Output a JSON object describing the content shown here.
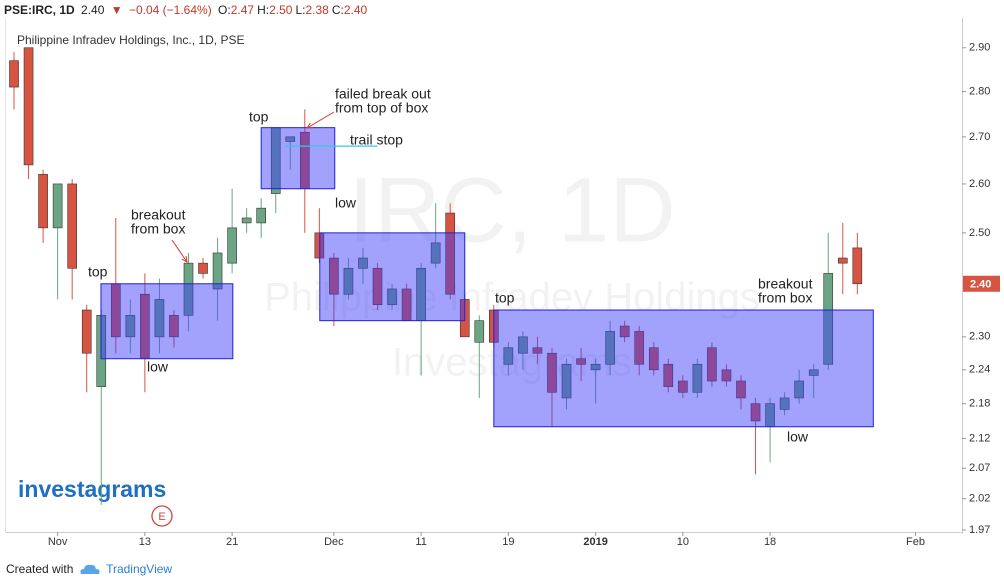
{
  "header": {
    "symbol": "PSE:IRC, 1D",
    "last": "2.40",
    "change": "−0.04 (−1.64%)",
    "ohlc": [
      {
        "label": "O:",
        "value": "2.47"
      },
      {
        "label": "H:",
        "value": "2.50"
      },
      {
        "label": "L:",
        "value": "2.38"
      },
      {
        "label": "C:",
        "value": "2.40"
      }
    ]
  },
  "chart_data": {
    "type": "candlestick",
    "title": "Philippine Infradev Holdings, Inc., 1D, PSE",
    "watermark": [
      "IRC, 1D",
      "Philippine Infradev Holdings",
      "Investagrams"
    ],
    "logo": "investagrams",
    "event_marker": "E",
    "log_scale": true,
    "up_color": "#6ba583",
    "down_color": "#d75442",
    "open": [
      2.87,
      2.9,
      2.62,
      2.51,
      2.6,
      2.35,
      2.21,
      2.4,
      2.3,
      2.38,
      2.3,
      2.34,
      2.34,
      2.44,
      2.39,
      2.44,
      2.52,
      2.52,
      2.58,
      2.69,
      2.71,
      2.5,
      2.45,
      2.38,
      2.43,
      2.43,
      2.36,
      2.39,
      2.33,
      2.44,
      2.54,
      2.37,
      2.29,
      2.35,
      2.25,
      2.27,
      2.28,
      2.27,
      2.19,
      2.26,
      2.24,
      2.25,
      2.32,
      2.31,
      2.28,
      2.25,
      2.22,
      2.2,
      2.28,
      2.24,
      2.22,
      2.18,
      2.14,
      2.17,
      2.19,
      2.23,
      2.25,
      2.45,
      2.47
    ],
    "high": [
      2.89,
      2.9,
      2.63,
      2.6,
      2.61,
      2.36,
      2.35,
      2.53,
      2.37,
      2.42,
      2.41,
      2.35,
      2.46,
      2.45,
      2.49,
      2.59,
      2.55,
      2.57,
      2.72,
      2.7,
      2.76,
      2.55,
      2.46,
      2.45,
      2.47,
      2.44,
      2.4,
      2.4,
      2.44,
      2.56,
      2.56,
      2.38,
      2.34,
      2.36,
      2.29,
      2.31,
      2.3,
      2.28,
      2.26,
      2.28,
      2.26,
      2.33,
      2.33,
      2.32,
      2.29,
      2.26,
      2.23,
      2.26,
      2.29,
      2.25,
      2.23,
      2.19,
      2.19,
      2.2,
      2.24,
      2.25,
      2.5,
      2.52,
      2.5
    ],
    "low": [
      2.76,
      2.61,
      2.48,
      2.37,
      2.37,
      2.2,
      2.01,
      2.27,
      2.27,
      2.2,
      2.27,
      2.28,
      2.31,
      2.41,
      2.33,
      2.42,
      2.5,
      2.49,
      2.54,
      2.63,
      2.5,
      2.44,
      2.32,
      2.37,
      2.4,
      2.35,
      2.35,
      2.33,
      2.23,
      2.43,
      2.37,
      2.3,
      2.19,
      2.28,
      2.23,
      2.24,
      2.25,
      2.14,
      2.17,
      2.22,
      2.18,
      2.23,
      2.29,
      2.23,
      2.23,
      2.2,
      2.19,
      2.19,
      2.21,
      2.21,
      2.17,
      2.06,
      2.08,
      2.16,
      2.18,
      2.19,
      2.24,
      2.38,
      2.38
    ],
    "close": [
      2.81,
      2.64,
      2.51,
      2.6,
      2.43,
      2.27,
      2.34,
      2.3,
      2.34,
      2.26,
      2.37,
      2.3,
      2.44,
      2.42,
      2.46,
      2.51,
      2.53,
      2.55,
      2.72,
      2.7,
      2.59,
      2.45,
      2.38,
      2.43,
      2.45,
      2.36,
      2.39,
      2.33,
      2.43,
      2.48,
      2.38,
      2.3,
      2.33,
      2.29,
      2.28,
      2.3,
      2.27,
      2.2,
      2.25,
      2.25,
      2.25,
      2.31,
      2.3,
      2.25,
      2.24,
      2.21,
      2.2,
      2.25,
      2.22,
      2.22,
      2.19,
      2.15,
      2.18,
      2.19,
      2.22,
      2.24,
      2.42,
      2.44,
      2.4
    ],
    "xlim": [
      -0.62,
      65.2
    ],
    "ylim": [
      1.97,
      2.97
    ],
    "xticks": [
      {
        "value": 3,
        "label": "Nov"
      },
      {
        "value": 9,
        "label": "13"
      },
      {
        "value": 15,
        "label": "21"
      },
      {
        "value": 22,
        "label": "Dec"
      },
      {
        "value": 28,
        "label": "11"
      },
      {
        "value": 34,
        "label": "19"
      },
      {
        "value": 40,
        "label": "2019"
      },
      {
        "value": 46,
        "label": "10"
      },
      {
        "value": 52,
        "label": "18"
      },
      {
        "value": 62,
        "label": "Feb"
      }
    ],
    "yticks": [
      {
        "value": 1.97,
        "label": "1.97"
      },
      {
        "value": 2.02,
        "label": "2.02"
      },
      {
        "value": 2.07,
        "label": "2.07"
      },
      {
        "value": 2.12,
        "label": "2.12"
      },
      {
        "value": 2.18,
        "label": "2.18"
      },
      {
        "value": 2.24,
        "label": "2.24"
      },
      {
        "value": 2.3,
        "label": "2.30"
      },
      {
        "value": 2.5,
        "label": "2.50"
      },
      {
        "value": 2.6,
        "label": "2.60"
      },
      {
        "value": 2.7,
        "label": "2.70"
      },
      {
        "value": 2.8,
        "label": "2.80"
      },
      {
        "value": 2.9,
        "label": "2.90"
      }
    ],
    "price_tag": {
      "value": 2.4,
      "label": "2.40"
    },
    "boxes": [
      {
        "x": [
          5.98,
          15.05
        ],
        "y": [
          2.26,
          2.4
        ]
      },
      {
        "x": [
          17.0,
          22.06
        ],
        "y": [
          2.59,
          2.72
        ]
      },
      {
        "x": [
          21.03,
          31.0
        ],
        "y": [
          2.33,
          2.5
        ]
      },
      {
        "x": [
          33.0,
          59.1
        ],
        "y": [
          2.14,
          2.35
        ]
      }
    ],
    "trail_stop": {
      "x": [
        18.7,
        25.0
      ],
      "y": 2.68
    },
    "annotations": [
      [
        "top"
      ],
      [
        "breakout",
        "from box"
      ],
      [
        "low"
      ],
      [
        "top"
      ],
      [
        "failed break out",
        "from top of box"
      ],
      [
        "trail stop"
      ],
      [
        "low"
      ],
      [
        "top"
      ],
      [
        "breakout",
        "from box"
      ],
      [
        "low"
      ]
    ]
  },
  "footer": {
    "created": "Created with",
    "brand": "TradingView"
  }
}
